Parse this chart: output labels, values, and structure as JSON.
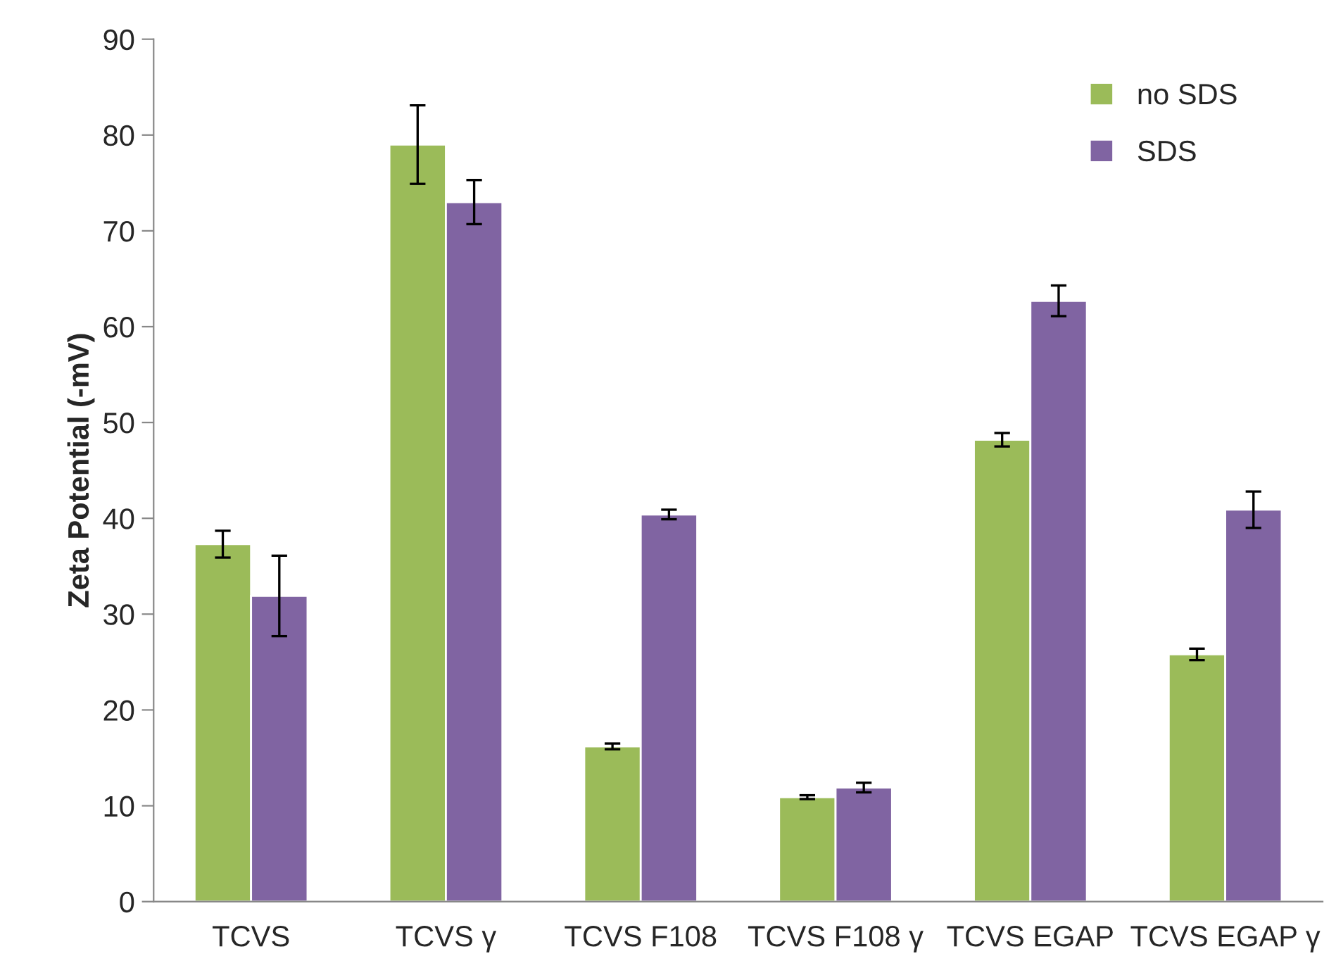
{
  "chart_data": {
    "type": "bar",
    "ylabel": "Zeta Potential (-mV)",
    "categories": [
      "TCVS",
      "TCVS γ",
      "TCVS F108",
      "TCVS F108 γ",
      "TCVS EGAP",
      "TCVS EGAP γ"
    ],
    "series": [
      {
        "name": "no SDS",
        "color": "#9bbb59",
        "values": [
          37.3,
          79.0,
          16.2,
          10.9,
          48.2,
          25.8
        ],
        "errors": [
          1.4,
          4.1,
          0.3,
          0.2,
          0.7,
          0.6
        ]
      },
      {
        "name": "SDS",
        "color": "#8064a2",
        "values": [
          31.9,
          73.0,
          40.4,
          11.9,
          62.7,
          40.9
        ],
        "errors": [
          4.2,
          2.3,
          0.5,
          0.5,
          1.6,
          1.9
        ]
      }
    ],
    "ylim": [
      0,
      90
    ],
    "yticks": [
      0,
      10,
      20,
      30,
      40,
      50,
      60,
      70,
      80,
      90
    ],
    "grid": false,
    "legend": "top right"
  }
}
